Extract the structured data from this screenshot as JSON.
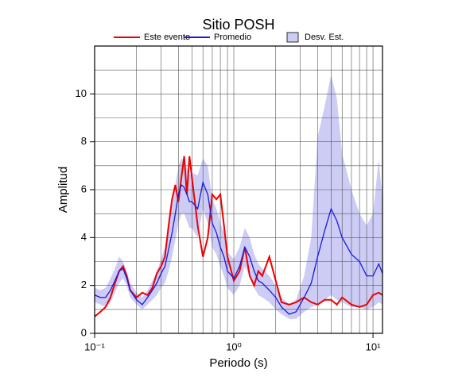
{
  "chart_data": {
    "type": "band-line",
    "title": "Sitio POSH",
    "x_label": "Periodo (s)",
    "y_label": "Amplitud",
    "xscale": "log",
    "xlim": [
      0.1,
      11.7
    ],
    "ylim": [
      0,
      12
    ],
    "xticks": [
      {
        "value": 0.1,
        "label": "10⁻¹"
      },
      {
        "value": 1,
        "label": "10⁰"
      },
      {
        "value": 10,
        "label": "10¹"
      }
    ],
    "xminor": [
      0.2,
      0.3,
      0.4,
      0.5,
      0.6,
      0.7,
      0.8,
      0.9,
      2,
      3,
      4,
      5,
      6,
      7,
      8,
      9
    ],
    "yticks": [
      0,
      2,
      4,
      6,
      8,
      10
    ],
    "yminor": [
      1,
      3,
      5,
      7,
      9,
      11
    ],
    "grid": true,
    "x": [
      0.1,
      0.11,
      0.12,
      0.13,
      0.14,
      0.15,
      0.16,
      0.17,
      0.18,
      0.2,
      0.22,
      0.24,
      0.26,
      0.28,
      0.3,
      0.32,
      0.34,
      0.36,
      0.38,
      0.4,
      0.42,
      0.44,
      0.46,
      0.48,
      0.5,
      0.55,
      0.6,
      0.65,
      0.7,
      0.75,
      0.8,
      0.85,
      0.9,
      1.0,
      1.1,
      1.2,
      1.3,
      1.4,
      1.5,
      1.6,
      1.8,
      2.0,
      2.2,
      2.5,
      2.8,
      3.2,
      3.6,
      4.0,
      4.5,
      5.0,
      5.5,
      6,
      7,
      8,
      9,
      10,
      11,
      11.7
    ],
    "band": {
      "name": "Desv. Est.",
      "color": "#ccccf5",
      "upper": [
        1.9,
        1.8,
        1.9,
        2.3,
        2.7,
        3.2,
        3.0,
        2.6,
        2.1,
        1.7,
        1.5,
        1.8,
        2.2,
        2.6,
        3.1,
        3.6,
        4.5,
        5.3,
        6.2,
        7.0,
        7.3,
        7.2,
        6.9,
        6.6,
        6.7,
        6.6,
        7.3,
        7.0,
        5.6,
        5.2,
        4.6,
        4.2,
        3.4,
        3.1,
        3.6,
        4.4,
        4.0,
        3.3,
        2.9,
        2.7,
        2.4,
        2.0,
        1.5,
        1.2,
        1.4,
        2.4,
        4.0,
        8.2,
        9.5,
        10.8,
        9.8,
        7.5,
        6.0,
        5.0,
        4.5,
        5.0,
        7.3,
        5.5
      ],
      "lower": [
        1.3,
        1.2,
        1.1,
        1.3,
        1.7,
        2.1,
        2.3,
        2.0,
        1.5,
        1.2,
        1.0,
        1.2,
        1.4,
        1.6,
        1.9,
        2.1,
        2.6,
        3.2,
        3.9,
        4.6,
        5.0,
        5.0,
        4.7,
        4.4,
        4.4,
        4.0,
        5.2,
        4.6,
        3.6,
        3.3,
        2.8,
        2.4,
        1.9,
        1.6,
        2.0,
        2.8,
        2.4,
        1.9,
        1.6,
        1.5,
        1.3,
        1.0,
        0.8,
        0.6,
        0.6,
        0.9,
        1.1,
        1.2,
        1.4,
        1.6,
        1.4,
        1.3,
        1.1,
        1.1,
        1.0,
        1.1,
        1.3,
        1.2
      ]
    },
    "series": [
      {
        "name": "Este evento",
        "color": "#ee0000",
        "values": [
          0.7,
          0.9,
          1.1,
          1.5,
          2.1,
          2.6,
          2.8,
          2.4,
          1.8,
          1.5,
          1.7,
          1.6,
          1.9,
          2.5,
          2.8,
          3.2,
          4.5,
          5.6,
          6.2,
          5.5,
          6.5,
          7.4,
          5.8,
          7.4,
          6.5,
          4.5,
          3.2,
          4.0,
          5.8,
          5.6,
          5.8,
          4.5,
          3.2,
          2.2,
          2.6,
          3.6,
          2.4,
          2.0,
          2.6,
          2.4,
          3.2,
          2.2,
          1.3,
          1.2,
          1.3,
          1.5,
          1.3,
          1.2,
          1.4,
          1.4,
          1.2,
          1.5,
          1.2,
          1.1,
          1.2,
          1.6,
          1.7,
          1.6
        ]
      },
      {
        "name": "Promedio",
        "color": "#1a1ae0",
        "values": [
          1.6,
          1.5,
          1.5,
          1.8,
          2.2,
          2.6,
          2.7,
          2.3,
          1.8,
          1.4,
          1.2,
          1.5,
          1.8,
          2.1,
          2.5,
          2.8,
          3.5,
          4.2,
          5.0,
          5.8,
          6.2,
          6.1,
          5.8,
          5.5,
          5.5,
          5.2,
          6.3,
          5.8,
          4.6,
          4.2,
          3.6,
          3.2,
          2.6,
          2.3,
          2.8,
          3.6,
          3.2,
          2.6,
          2.2,
          2.1,
          1.8,
          1.5,
          1.1,
          0.8,
          0.9,
          1.5,
          2.1,
          3.2,
          4.3,
          5.2,
          4.7,
          4.0,
          3.3,
          3.0,
          2.4,
          2.4,
          2.9,
          2.5
        ]
      }
    ]
  }
}
